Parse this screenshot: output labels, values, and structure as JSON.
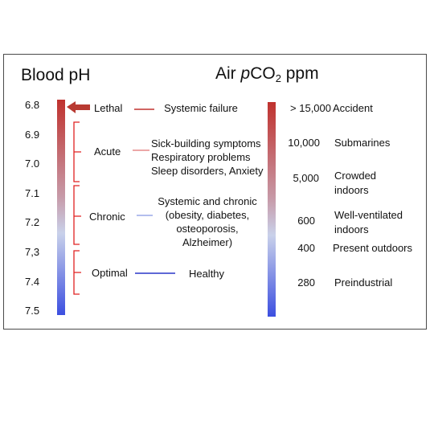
{
  "left_title": "Blood pH",
  "right_title": {
    "pre": "Air ",
    "italic": "p",
    "mid": "CO",
    "sub": "2",
    "post": " ppm"
  },
  "ph_ticks": [
    "6.8",
    "6.9",
    "7.0",
    "7.1",
    "7.2",
    "7,3",
    "7.4",
    "7.5"
  ],
  "categories": [
    {
      "label": "Lethal",
      "line_color": "#c0322e",
      "description": [
        "Systemic failure"
      ]
    },
    {
      "label": "Acute",
      "line_color": "#e58a8a",
      "description": [
        "Sick-building symptoms",
        "Respiratory problems",
        "Sleep disorders, Anxiety"
      ]
    },
    {
      "label": "Chronic",
      "line_color": "#9aa8e8",
      "description": [
        "Systemic and chronic",
        "(obesity, diabetes,",
        "osteoporosis,",
        "Alzheimer)"
      ]
    },
    {
      "label": "Optimal",
      "line_color": "#2a36c8",
      "description": [
        "Healthy"
      ]
    }
  ],
  "co2_levels": [
    {
      "value": "> 15,000",
      "place": [
        "Accident"
      ]
    },
    {
      "value": "10,000",
      "place": [
        "Submarines"
      ]
    },
    {
      "value": "5,000",
      "place": [
        "Crowded",
        "indoors"
      ]
    },
    {
      "value": "600",
      "place": [
        "Well-ventilated",
        "indoors"
      ]
    },
    {
      "value": "400",
      "place": [
        "Present outdoors"
      ]
    },
    {
      "value": "280",
      "place": [
        "Preindustrial"
      ]
    }
  ],
  "colors": {
    "bar_top": "#c0322e",
    "bar_bottom": "#3c4fe0",
    "bracket": "#e02020",
    "arrow": "#b83a32"
  }
}
